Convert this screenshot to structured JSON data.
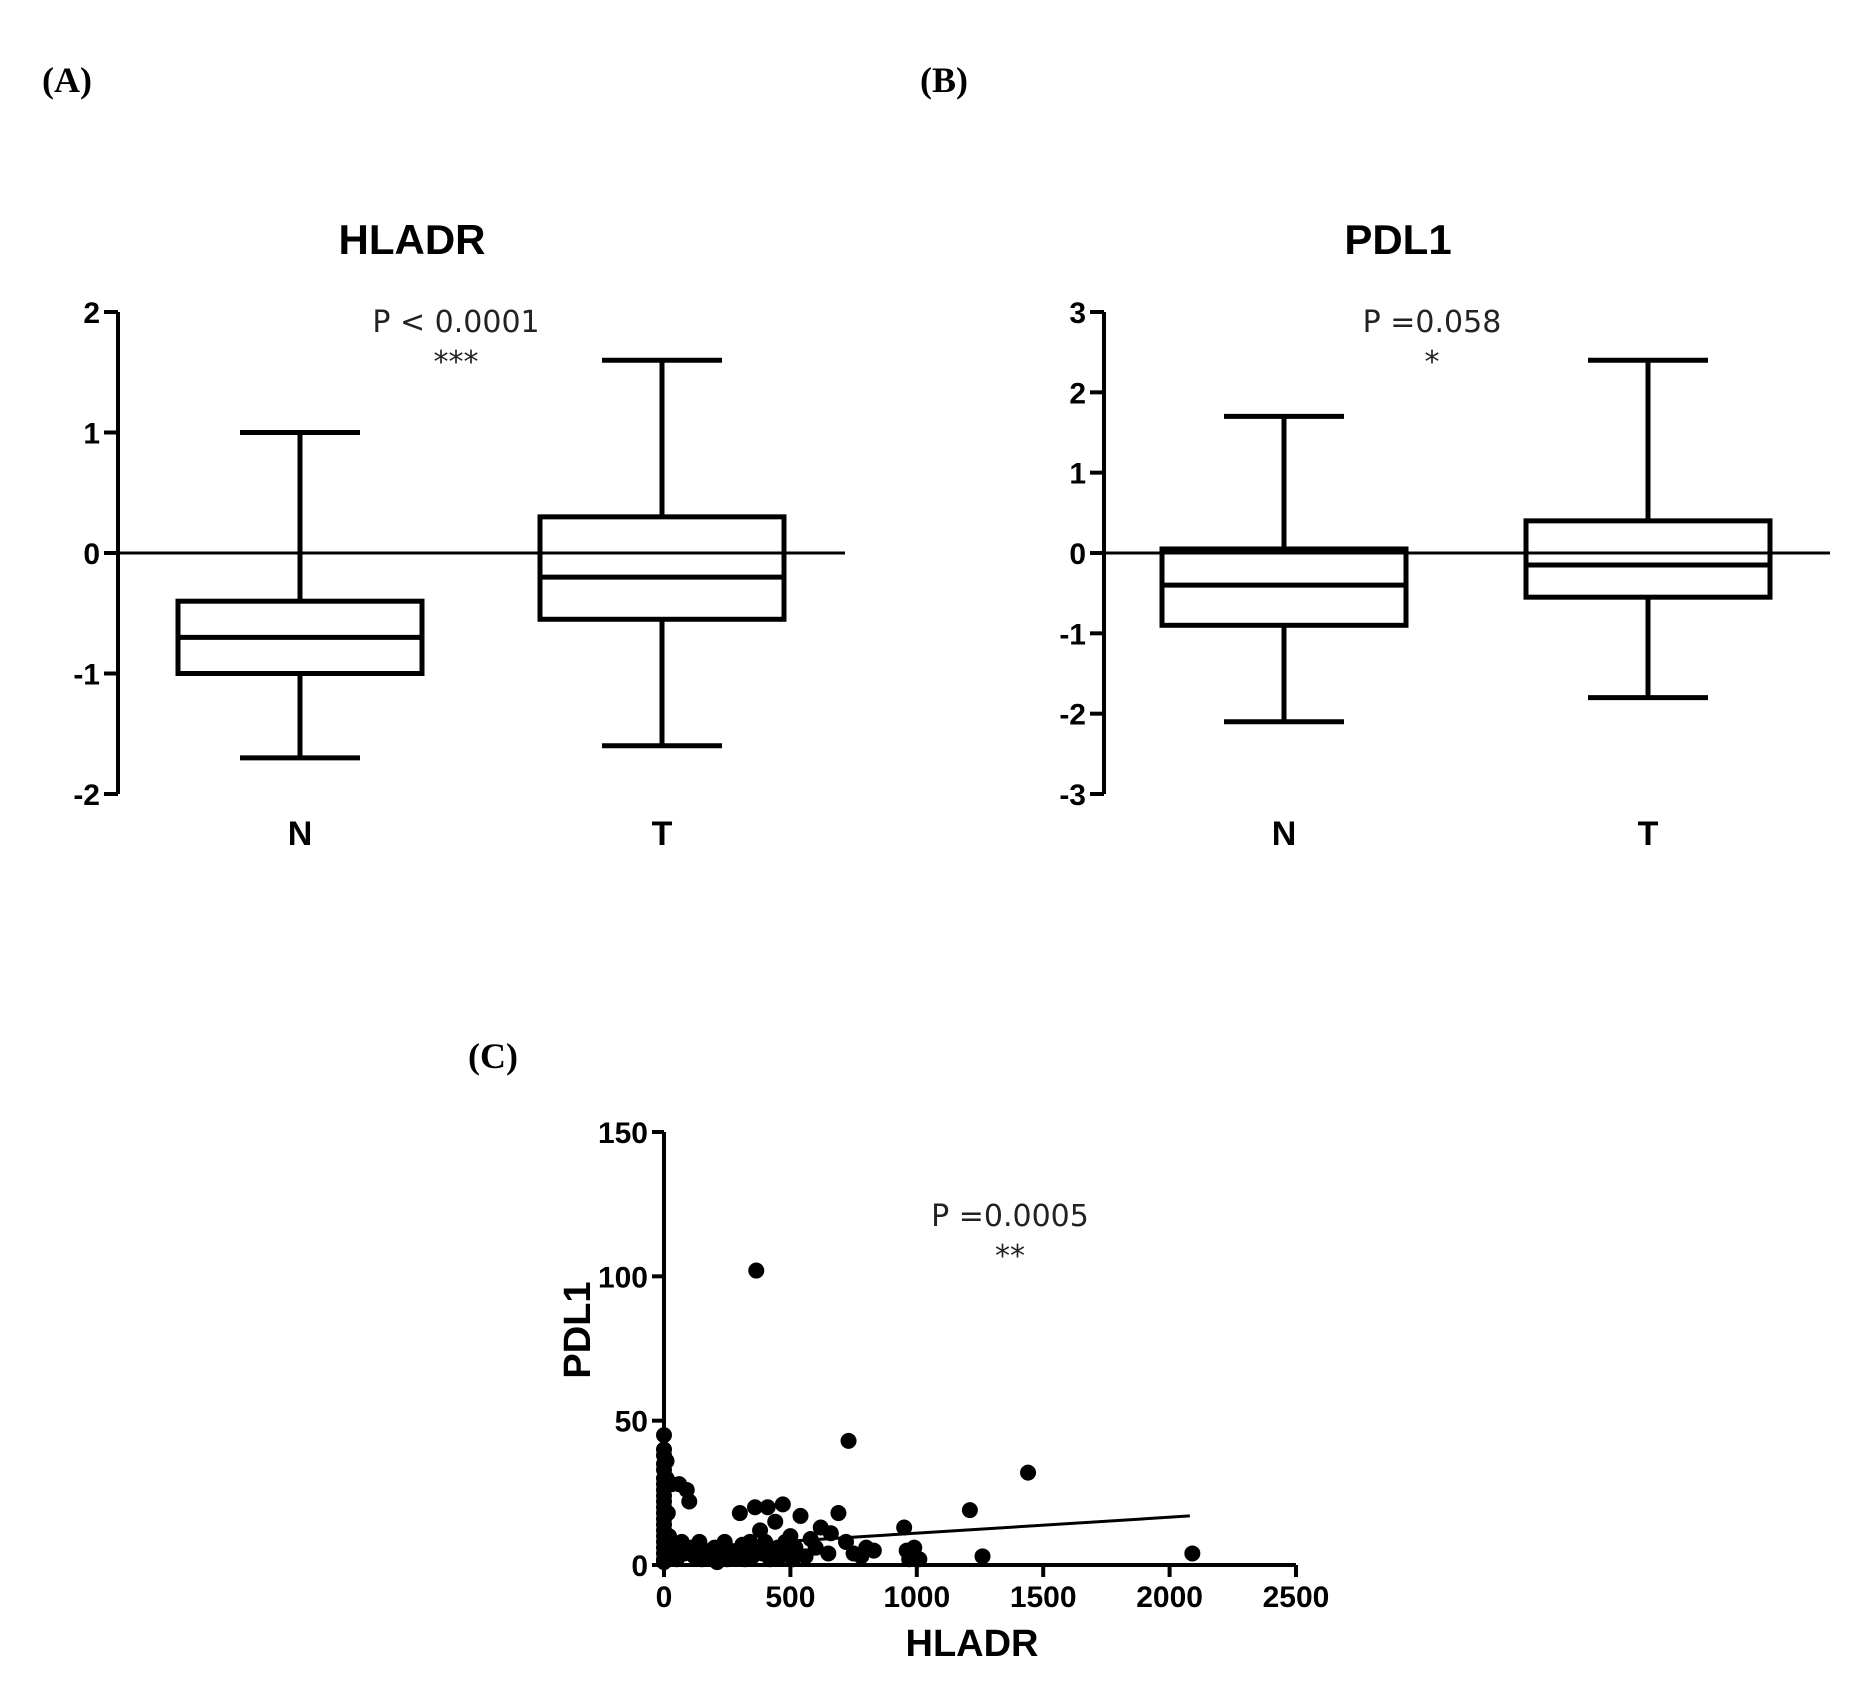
{
  "panels": {
    "a": {
      "letter": "(A)"
    },
    "b": {
      "letter": "(B)"
    },
    "c": {
      "letter": "(C)"
    }
  },
  "chart_data": [
    {
      "type": "box",
      "title": "HLADR",
      "xlabel": "",
      "ylabel": "",
      "ylim": [
        -2,
        2
      ],
      "yticks": [
        -2,
        -1,
        0,
        1,
        2
      ],
      "reference_line_y": 0,
      "categories": [
        "N",
        "T"
      ],
      "boxes": [
        {
          "category": "N",
          "min": -1.7,
          "q1": -1.0,
          "median": -0.7,
          "q3": -0.4,
          "max": 1.0
        },
        {
          "category": "T",
          "min": -1.6,
          "q1": -0.55,
          "median": -0.2,
          "q3": 0.3,
          "max": 1.6
        }
      ],
      "annotations": [
        "P < 0.0001",
        "***"
      ],
      "grid": false,
      "legend": "none"
    },
    {
      "type": "box",
      "title": "PDL1",
      "xlabel": "",
      "ylabel": "",
      "ylim": [
        -3,
        3
      ],
      "yticks": [
        -3,
        -2,
        -1,
        0,
        1,
        2,
        3
      ],
      "reference_line_y": 0,
      "categories": [
        "N",
        "T"
      ],
      "boxes": [
        {
          "category": "N",
          "min": -2.1,
          "q1": -0.9,
          "median": -0.4,
          "q3": 0.05,
          "max": 1.7
        },
        {
          "category": "T",
          "min": -1.8,
          "q1": -0.55,
          "median": -0.15,
          "q3": 0.4,
          "max": 2.4
        }
      ],
      "annotations": [
        "P =0.058",
        "*"
      ],
      "grid": false,
      "legend": "none"
    },
    {
      "type": "scatter",
      "title": "",
      "xlabel": "HLADR",
      "ylabel": "PDL1",
      "xlim": [
        0,
        2500
      ],
      "ylim": [
        0,
        150
      ],
      "xticks": [
        0,
        500,
        1000,
        1500,
        2000,
        2500
      ],
      "yticks": [
        0,
        50,
        100,
        150
      ],
      "annotations": [
        "P =0.0005",
        "**"
      ],
      "fit_line": [
        [
          0,
          5.5
        ],
        [
          2080,
          17
        ]
      ],
      "points": [
        [
          0,
          45
        ],
        [
          0,
          40
        ],
        [
          0,
          38
        ],
        [
          0,
          35
        ],
        [
          0,
          33
        ],
        [
          0,
          30
        ],
        [
          0,
          28
        ],
        [
          0,
          26
        ],
        [
          0,
          24
        ],
        [
          0,
          22
        ],
        [
          0,
          20
        ],
        [
          0,
          18
        ],
        [
          0,
          16
        ],
        [
          0,
          14
        ],
        [
          0,
          12
        ],
        [
          0,
          10
        ],
        [
          0,
          8
        ],
        [
          0,
          6
        ],
        [
          0,
          4
        ],
        [
          0,
          2
        ],
        [
          0,
          1
        ],
        [
          10,
          36
        ],
        [
          10,
          30
        ],
        [
          15,
          18
        ],
        [
          20,
          10
        ],
        [
          20,
          4
        ],
        [
          30,
          28
        ],
        [
          40,
          6
        ],
        [
          50,
          2
        ],
        [
          60,
          28
        ],
        [
          70,
          8
        ],
        [
          80,
          4
        ],
        [
          90,
          26
        ],
        [
          100,
          22
        ],
        [
          110,
          6
        ],
        [
          120,
          3
        ],
        [
          140,
          8
        ],
        [
          150,
          2
        ],
        [
          160,
          5
        ],
        [
          180,
          3
        ],
        [
          200,
          6
        ],
        [
          210,
          1
        ],
        [
          220,
          4
        ],
        [
          240,
          8
        ],
        [
          250,
          2
        ],
        [
          260,
          5
        ],
        [
          280,
          3
        ],
        [
          300,
          18
        ],
        [
          310,
          7
        ],
        [
          320,
          2
        ],
        [
          330,
          5
        ],
        [
          340,
          8
        ],
        [
          350,
          3
        ],
        [
          360,
          20
        ],
        [
          365,
          102
        ],
        [
          370,
          6
        ],
        [
          380,
          12
        ],
        [
          390,
          4
        ],
        [
          400,
          8
        ],
        [
          410,
          20
        ],
        [
          420,
          2
        ],
        [
          430,
          5
        ],
        [
          440,
          15
        ],
        [
          450,
          6
        ],
        [
          460,
          3
        ],
        [
          470,
          21
        ],
        [
          480,
          8
        ],
        [
          490,
          4
        ],
        [
          500,
          10
        ],
        [
          510,
          2
        ],
        [
          520,
          6
        ],
        [
          540,
          17
        ],
        [
          560,
          3
        ],
        [
          580,
          9
        ],
        [
          600,
          6
        ],
        [
          620,
          13
        ],
        [
          650,
          4
        ],
        [
          660,
          11
        ],
        [
          690,
          18
        ],
        [
          720,
          8
        ],
        [
          730,
          43
        ],
        [
          750,
          4
        ],
        [
          780,
          3
        ],
        [
          800,
          6
        ],
        [
          830,
          5
        ],
        [
          950,
          13
        ],
        [
          960,
          5
        ],
        [
          970,
          2
        ],
        [
          990,
          6
        ],
        [
          1010,
          2
        ],
        [
          1210,
          19
        ],
        [
          1260,
          3
        ],
        [
          1440,
          32
        ],
        [
          2090,
          4
        ]
      ],
      "grid": false,
      "legend": "none"
    }
  ]
}
